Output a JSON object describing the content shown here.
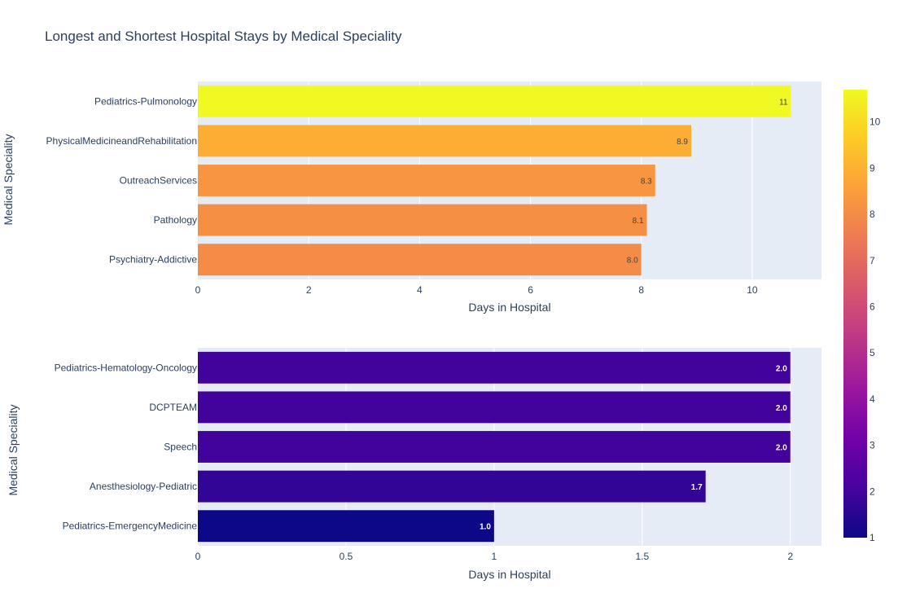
{
  "chart_data": [
    {
      "type": "bar",
      "orientation": "horizontal",
      "title": "Longest and Shortest Hospital Stays by Medical Speciality",
      "xlabel": "Days in Hospital",
      "ylabel": "Medical Speciality",
      "categories": [
        "Pediatrics-Pulmonology",
        "PhysicalMedicineandRehabilitation",
        "OutreachServices",
        "Pathology",
        "Psychiatry-Addictive"
      ],
      "values": [
        10.7,
        8.9,
        8.25,
        8.1,
        8.0
      ],
      "data_labels": [
        "11",
        "8.9",
        "8.3",
        "8.1",
        "8.0"
      ],
      "xlim": [
        0,
        11.25
      ],
      "xticks": [
        0,
        2,
        4,
        6,
        8,
        10
      ],
      "xtick_labels": [
        "0",
        "2",
        "4",
        "6",
        "8",
        "10"
      ],
      "grid": true
    },
    {
      "type": "bar",
      "orientation": "horizontal",
      "xlabel": "Days in Hospital",
      "ylabel": "Medical Speciality",
      "categories": [
        "Pediatrics-Hematology-Oncology",
        "DCPTEAM",
        "Speech",
        "Anesthesiology-Pediatric",
        "Pediatrics-EmergencyMedicine"
      ],
      "values": [
        2.0,
        2.0,
        2.0,
        1.714,
        1.0
      ],
      "data_labels": [
        "2.0",
        "2.0",
        "2.0",
        "1.7",
        "1.0"
      ],
      "xlim": [
        0,
        2.105
      ],
      "xticks": [
        0,
        0.5,
        1,
        1.5,
        2
      ],
      "xtick_labels": [
        "0",
        "0.5",
        "1",
        "1.5",
        "2"
      ],
      "grid": true
    }
  ],
  "colorbar": {
    "colorscale": "plasma",
    "range": [
      1,
      10.7
    ],
    "ticks": [
      1,
      2,
      3,
      4,
      5,
      6,
      7,
      8,
      9,
      10
    ],
    "tick_labels": [
      "1",
      "2",
      "3",
      "4",
      "5",
      "6",
      "7",
      "8",
      "9",
      "10"
    ]
  },
  "colors": {
    "plot_bg": "#e5ecf6",
    "grid": "#ffffff",
    "text": "#2a3f5f"
  }
}
